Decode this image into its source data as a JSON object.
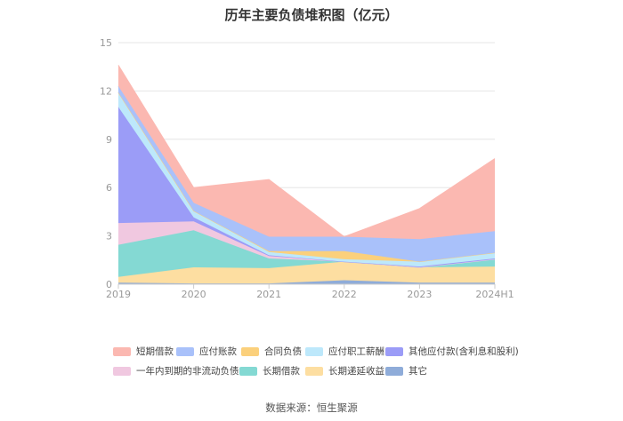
{
  "chart_data": {
    "type": "area",
    "title": "历年主要负债堆积图（亿元）",
    "source": "数据来源：恒生聚源",
    "categories": [
      "2019",
      "2020",
      "2021",
      "2022",
      "2023",
      "2024H1"
    ],
    "y_ticks": [
      "0",
      "3",
      "6",
      "9",
      "12",
      "15"
    ],
    "ylim": [
      0,
      15
    ],
    "grid": true,
    "legend_position": "bottom",
    "series": [
      {
        "name": "其它",
        "color": "#8facd9",
        "values": [
          0.1,
          0.05,
          0.05,
          0.25,
          0.1,
          0.1
        ]
      },
      {
        "name": "长期递延收益",
        "color": "#fddea1",
        "values": [
          0.35,
          1.0,
          0.95,
          1.15,
          0.95,
          1.0
        ]
      },
      {
        "name": "长期借款",
        "color": "#84d9d3",
        "values": [
          2.0,
          2.3,
          0.6,
          0.0,
          0.0,
          0.45
        ]
      },
      {
        "name": "一年内到期的非流动负债",
        "color": "#f0c8e0",
        "values": [
          1.35,
          0.55,
          0.15,
          0.0,
          0.0,
          0.0
        ]
      },
      {
        "name": "其他应付款(含利息和股利)",
        "color": "#9b9cf7",
        "values": [
          7.2,
          0.25,
          0.05,
          0.0,
          0.05,
          0.05
        ]
      },
      {
        "name": "应付职工薪酬",
        "color": "#bde8fb",
        "values": [
          0.9,
          0.4,
          0.2,
          0.15,
          0.3,
          0.35
        ]
      },
      {
        "name": "合同负债",
        "color": "#fbd07c",
        "values": [
          0.0,
          0.0,
          0.05,
          0.5,
          0.0,
          0.0
        ]
      },
      {
        "name": "应付账款",
        "color": "#a9c1fa",
        "values": [
          0.4,
          0.5,
          0.9,
          0.9,
          1.4,
          1.35
        ]
      },
      {
        "name": "短期借款",
        "color": "#fbb8b1",
        "values": [
          1.3,
          0.95,
          3.55,
          0.0,
          1.9,
          4.5
        ]
      }
    ],
    "legend_order": [
      "短期借款",
      "应付账款",
      "合同负债",
      "应付职工薪酬",
      "其他应付款(含利息和股利)",
      "一年内到期的非流动负债",
      "长期借款",
      "长期递延收益",
      "其它"
    ]
  }
}
